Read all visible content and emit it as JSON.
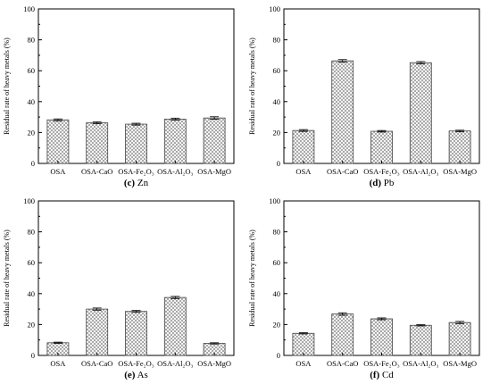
{
  "chart_data": [
    {
      "type": "bar",
      "panel_label": "(c)",
      "metal": "Zn",
      "categories": [
        "OSA",
        "OSA-CaO",
        "OSA-Fe₂O₃",
        "OSA-Al₂O₃",
        "OSA-MgO"
      ],
      "values": [
        28.2,
        26.3,
        25.4,
        28.7,
        29.4
      ],
      "errors": [
        0.6,
        0.6,
        0.6,
        0.6,
        0.8
      ],
      "ylabel": "Residual rate of heavy metals (%)",
      "ylim": [
        0,
        100
      ],
      "yticks": [
        0,
        20,
        40,
        60,
        80,
        100
      ],
      "grid": false
    },
    {
      "type": "bar",
      "panel_label": "(d)",
      "metal": "Pb",
      "categories": [
        "OSA",
        "OSA-CaO",
        "OSA-Fe₂O₃",
        "OSA-Al₂O₃",
        "OSA-MgO"
      ],
      "values": [
        21.3,
        66.4,
        20.8,
        65.2,
        21.0
      ],
      "errors": [
        0.6,
        0.8,
        0.5,
        0.7,
        0.5
      ],
      "ylabel": "Residual rate of heavy metals (%)",
      "ylim": [
        0,
        100
      ],
      "yticks": [
        0,
        20,
        40,
        60,
        80,
        100
      ],
      "grid": false
    },
    {
      "type": "bar",
      "panel_label": "(e)",
      "metal": "As",
      "categories": [
        "OSA",
        "OSA-CaO",
        "OSA-Fe₂O₃",
        "OSA-Al₂O₃",
        "OSA-MgO"
      ],
      "values": [
        8.2,
        30.0,
        28.5,
        37.5,
        7.8
      ],
      "errors": [
        0.4,
        0.7,
        0.6,
        0.7,
        0.4
      ],
      "ylabel": "Residual rate of heavy metals (%)",
      "ylim": [
        0,
        100
      ],
      "yticks": [
        0,
        20,
        40,
        60,
        80,
        100
      ],
      "grid": false
    },
    {
      "type": "bar",
      "panel_label": "(f)",
      "metal": "Cd",
      "categories": [
        "OSA",
        "OSA-CaO",
        "OSA-Fe₂O₃",
        "OSA-Al₂O₃",
        "OSA-MgO"
      ],
      "values": [
        14.3,
        26.8,
        23.7,
        19.5,
        21.3
      ],
      "errors": [
        0.4,
        0.8,
        0.6,
        0.4,
        0.7
      ],
      "ylabel": "Residual rate of heavy metals (%)",
      "ylim": [
        0,
        100
      ],
      "yticks": [
        0,
        20,
        40,
        60,
        80,
        100
      ],
      "grid": false
    }
  ],
  "style": {
    "bar_fill": "#ffffff",
    "hatch_color": "#7a7a7a",
    "axis_color": "#000000"
  }
}
